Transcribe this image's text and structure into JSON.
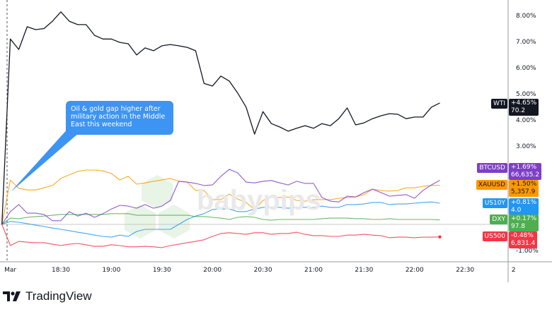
{
  "chart_data": {
    "type": "line",
    "title": "",
    "xlabel": "",
    "ylabel": "",
    "ylim": [
      -1.3,
      8.6
    ],
    "grid": false,
    "y_ticks": [
      "8.00%",
      "7.00%",
      "6.00%",
      "5.00%",
      "4.00%",
      "3.00%",
      "-1.00%"
    ],
    "y_tick_values": [
      8,
      7,
      6,
      5,
      4,
      3,
      -1
    ],
    "x_ticks": [
      "Mar",
      "18:30",
      "19:00",
      "19:30",
      "20:00",
      "20:30",
      "21:00",
      "21:30",
      "22:00",
      "22:30",
      "2"
    ],
    "x_tick_times": [
      "18:00",
      "18:30",
      "19:00",
      "19:30",
      "20:00",
      "20:30",
      "21:00",
      "21:30",
      "22:00",
      "22:30",
      "23:00"
    ],
    "times": [
      "17:55",
      "18:00",
      "18:05",
      "18:10",
      "18:15",
      "18:20",
      "18:25",
      "18:30",
      "18:35",
      "18:40",
      "18:45",
      "18:50",
      "18:55",
      "19:00",
      "19:05",
      "19:10",
      "19:15",
      "19:20",
      "19:25",
      "19:30",
      "19:35",
      "19:40",
      "19:45",
      "19:50",
      "19:55",
      "20:00",
      "20:05",
      "20:10",
      "20:15",
      "20:20",
      "20:25",
      "20:30",
      "20:35",
      "20:40",
      "20:45",
      "20:50",
      "20:55",
      "21:00",
      "21:05",
      "21:10",
      "21:15",
      "21:20",
      "21:25",
      "21:30",
      "21:35",
      "21:40",
      "21:45",
      "21:50",
      "21:55",
      "22:00",
      "22:05",
      "22:10",
      "22:15"
    ],
    "series": [
      {
        "name": "WTI",
        "color": "#131722",
        "change": "+4.65%",
        "price": "70.2",
        "values": [
          0,
          7.1,
          6.7,
          7.57,
          7.46,
          7.5,
          7.78,
          8.14,
          7.78,
          7.65,
          7.65,
          7.24,
          7.1,
          7.1,
          6.97,
          6.92,
          6.49,
          6.76,
          6.65,
          6.84,
          6.89,
          6.84,
          6.78,
          6.65,
          5.4,
          5.3,
          5.68,
          5.49,
          5.03,
          4.49,
          3.46,
          4.32,
          3.86,
          3.73,
          3.57,
          3.68,
          3.78,
          3.68,
          3.86,
          3.78,
          4.05,
          4.46,
          3.81,
          3.89,
          4.05,
          4.16,
          4.24,
          4.22,
          4.05,
          4.11,
          4.11,
          4.49,
          4.65
        ]
      },
      {
        "name": "BTCUSD",
        "color": "#7e3fc6",
        "change": "+1.69%",
        "price": "66,635.2",
        "values": [
          0,
          0.49,
          0.76,
          0.43,
          0.43,
          0.38,
          0.14,
          0.14,
          0.49,
          0.32,
          0.43,
          0.27,
          0.41,
          0.59,
          0.73,
          0.7,
          0.62,
          0.76,
          0.62,
          0.7,
          0.92,
          1.65,
          1.62,
          1.57,
          1.49,
          1.51,
          1.84,
          2.11,
          1.97,
          1.62,
          1.59,
          1.65,
          1.68,
          1.59,
          1.51,
          1.65,
          1.57,
          1.57,
          1.03,
          0.89,
          0.86,
          1.08,
          1.05,
          1.22,
          1.35,
          1.22,
          1.08,
          1.11,
          1.14,
          1.0,
          1.3,
          1.51,
          1.69
        ]
      },
      {
        "name": "XAUUSD",
        "color": "#ff9800",
        "change": "+1.50%",
        "price": "5,357.9",
        "values": [
          0,
          1.7,
          1.38,
          1.32,
          1.32,
          1.4,
          1.49,
          1.76,
          1.9,
          2.03,
          2.08,
          2.08,
          2.05,
          1.95,
          1.7,
          1.84,
          1.54,
          1.59,
          1.65,
          1.7,
          1.76,
          1.65,
          1.62,
          1.3,
          1.3,
          0.95,
          0.95,
          1.16,
          0.97,
          0.84,
          0.57,
          0.92,
          1.05,
          1.03,
          1.05,
          0.92,
          0.89,
          0.95,
          0.95,
          0.95,
          1.0,
          1.03,
          1.05,
          1.14,
          1.35,
          1.3,
          1.27,
          1.3,
          1.4,
          1.4,
          1.46,
          1.49,
          1.5
        ]
      },
      {
        "name": "US10Y",
        "color": "#2196f3",
        "change": "+0.81%",
        "price": "4.0",
        "values": [
          0,
          0.11,
          0.08,
          0.03,
          -0.03,
          -0.08,
          -0.14,
          -0.19,
          -0.24,
          -0.3,
          -0.35,
          -0.41,
          -0.46,
          -0.49,
          -0.41,
          -0.46,
          -0.27,
          -0.19,
          -0.19,
          -0.19,
          -0.19,
          0,
          0.19,
          0.32,
          0.41,
          0.57,
          0.59,
          0.59,
          0.49,
          0.49,
          0.59,
          0.65,
          0.65,
          0.65,
          0.62,
          0.65,
          0.65,
          0.65,
          0.7,
          0.65,
          0.65,
          0.76,
          0.76,
          0.78,
          0.84,
          0.84,
          0.76,
          0.78,
          0.78,
          0.81,
          0.84,
          0.86,
          0.81
        ]
      },
      {
        "name": "DXY",
        "color": "#4caf50",
        "change": "+0.17%",
        "price": "97.8",
        "values": [
          0,
          0.24,
          0.22,
          0.27,
          0.3,
          0.32,
          0.35,
          0.38,
          0.38,
          0.38,
          0.38,
          0.38,
          0.38,
          0.41,
          0.41,
          0.41,
          0.35,
          0.35,
          0.35,
          0.35,
          0.35,
          0.35,
          0.35,
          0.3,
          0.3,
          0.27,
          0.24,
          0.19,
          0.27,
          0.3,
          0.27,
          0.19,
          0.16,
          0.19,
          0.19,
          0.19,
          0.19,
          0.19,
          0.22,
          0.24,
          0.24,
          0.24,
          0.22,
          0.22,
          0.19,
          0.19,
          0.22,
          0.19,
          0.19,
          0.19,
          0.19,
          0.19,
          0.17
        ]
      },
      {
        "name": "US500",
        "color": "#f23645",
        "change": "-0.48%",
        "price": "6,831.4",
        "values": [
          0,
          -0.81,
          -0.65,
          -0.68,
          -0.7,
          -0.7,
          -0.76,
          -0.81,
          -0.76,
          -0.73,
          -0.78,
          -0.84,
          -0.84,
          -0.78,
          -0.81,
          -0.86,
          -0.86,
          -0.84,
          -0.86,
          -0.89,
          -0.81,
          -0.76,
          -0.7,
          -0.65,
          -0.59,
          -0.46,
          -0.35,
          -0.32,
          -0.35,
          -0.38,
          -0.32,
          -0.32,
          -0.38,
          -0.35,
          -0.35,
          -0.3,
          -0.38,
          -0.43,
          -0.43,
          -0.46,
          -0.46,
          -0.41,
          -0.41,
          -0.38,
          -0.41,
          -0.43,
          -0.51,
          -0.49,
          -0.49,
          -0.51,
          -0.49,
          -0.49,
          -0.48
        ]
      }
    ],
    "annotations": [
      {
        "text": "Oil & gold gap higher after military action in the Middle East this weekend",
        "color": "#3d94f2",
        "points_to": "18:00"
      }
    ]
  },
  "watermark": "babypips",
  "footer": {
    "brand": "TradingView"
  }
}
